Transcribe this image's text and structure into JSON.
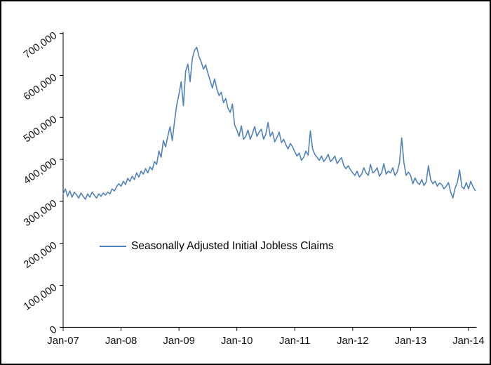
{
  "frame": {
    "background": "#ffffff",
    "border_color": "#000000"
  },
  "chart_data": {
    "type": "line",
    "title": "",
    "legend": "Seasonally Adjusted Initial Jobless Claims",
    "series_color": "#4F81BD",
    "axis_color": "#000000",
    "grid": "off",
    "legend_position": "inside-left-middle",
    "xlabel": "",
    "ylabel": "",
    "x_tick_labels": [
      "Jan-07",
      "Jan-08",
      "Jan-09",
      "Jan-10",
      "Jan-11",
      "Jan-12",
      "Jan-13",
      "Jan-14"
    ],
    "x_tick_indices": [
      0,
      26,
      52,
      78,
      104,
      130,
      156,
      182
    ],
    "y_ticks": [
      0,
      100000,
      200000,
      300000,
      400000,
      500000,
      600000,
      700000
    ],
    "y_tick_labels": [
      "0",
      "100,000",
      "200,000",
      "300,000",
      "400,000",
      "500,000",
      "600,000",
      "700,000"
    ],
    "ylim": [
      0,
      700000
    ],
    "sampling": "biweekly estimates, Jan-2007 to Feb-2014",
    "values": [
      318000,
      330000,
      312000,
      325000,
      310000,
      322000,
      316000,
      308000,
      320000,
      312000,
      305000,
      318000,
      310000,
      322000,
      315000,
      308000,
      318000,
      312000,
      320000,
      315000,
      322000,
      318000,
      330000,
      325000,
      335000,
      342000,
      336000,
      348000,
      340000,
      355000,
      348000,
      360000,
      352000,
      368000,
      358000,
      372000,
      365000,
      378000,
      368000,
      382000,
      375000,
      395000,
      388000,
      420000,
      405000,
      445000,
      430000,
      455000,
      478000,
      445000,
      490000,
      530000,
      555000,
      585000,
      528000,
      610000,
      627000,
      585000,
      640000,
      660000,
      667000,
      645000,
      632000,
      615000,
      625000,
      605000,
      588000,
      570000,
      592000,
      568000,
      552000,
      560000,
      535000,
      545000,
      522000,
      512000,
      532000,
      482000,
      470000,
      455000,
      480000,
      448000,
      455000,
      470000,
      448000,
      462000,
      478000,
      455000,
      465000,
      472000,
      448000,
      460000,
      488000,
      455000,
      465000,
      442000,
      452000,
      465000,
      440000,
      448000,
      435000,
      425000,
      438000,
      430000,
      418000,
      408000,
      415000,
      398000,
      405000,
      420000,
      410000,
      468000,
      425000,
      412000,
      405000,
      398000,
      408000,
      395000,
      402000,
      412000,
      395000,
      400000,
      408000,
      390000,
      398000,
      404000,
      385000,
      378000,
      385000,
      375000,
      368000,
      362000,
      372000,
      358000,
      365000,
      380000,
      368000,
      362000,
      388000,
      368000,
      372000,
      380000,
      360000,
      368000,
      390000,
      365000,
      372000,
      368000,
      380000,
      362000,
      370000,
      392000,
      451000,
      392000,
      362000,
      370000,
      362000,
      342000,
      356000,
      345000,
      340000,
      352000,
      338000,
      346000,
      385000,
      352000,
      342000,
      348000,
      336000,
      344000,
      340000,
      330000,
      336000,
      345000,
      322000,
      308000,
      332000,
      345000,
      375000,
      335000,
      330000,
      345000,
      330000,
      348000,
      335000,
      326000
    ]
  }
}
